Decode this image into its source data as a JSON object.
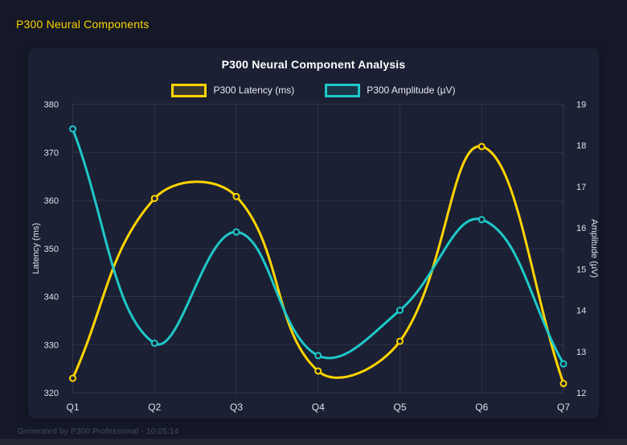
{
  "header": {
    "title": "P300 Neural Components"
  },
  "footer": {
    "text": "Generated by P300 Professional - 10:05:14"
  },
  "colors": {
    "background": "#141827",
    "panel": "#1b2034",
    "header_accent": "#ffd400",
    "title_text": "#ffffff",
    "tick_text": "#dfe2ea",
    "grid": "rgba(255,255,255,0.09)",
    "latency_series": "#ffd400",
    "amplitude_series": "#1ec8c8",
    "footer_text": "#414a5e"
  },
  "chart_data": {
    "type": "line",
    "title": "P300 Neural Component Analysis",
    "categories": [
      "Q1",
      "Q2",
      "Q3",
      "Q4",
      "Q5",
      "Q6",
      "Q7"
    ],
    "series": [
      {
        "name": "P300 Latency (ms)",
        "axis": "left",
        "color": "#ffd400",
        "values": [
          323,
          360.4,
          360.8,
          324.5,
          330.7,
          371.2,
          321.9
        ]
      },
      {
        "name": "P300 Amplitude (µV)",
        "axis": "right",
        "color": "#1ec8c8",
        "values": [
          18.4,
          13.2,
          15.9,
          12.9,
          14.0,
          16.2,
          12.7
        ]
      }
    ],
    "left_axis": {
      "label": "Latency (ms)",
      "min": 320,
      "max": 380,
      "ticks": [
        320,
        330,
        340,
        350,
        360,
        370,
        380
      ]
    },
    "right_axis": {
      "label": "Amplitude (µV)",
      "min": 12,
      "max": 19,
      "ticks": [
        12,
        13,
        14,
        15,
        16,
        17,
        18,
        19
      ]
    },
    "grid": true,
    "legend_position": "top",
    "line_tension": 0.4
  }
}
